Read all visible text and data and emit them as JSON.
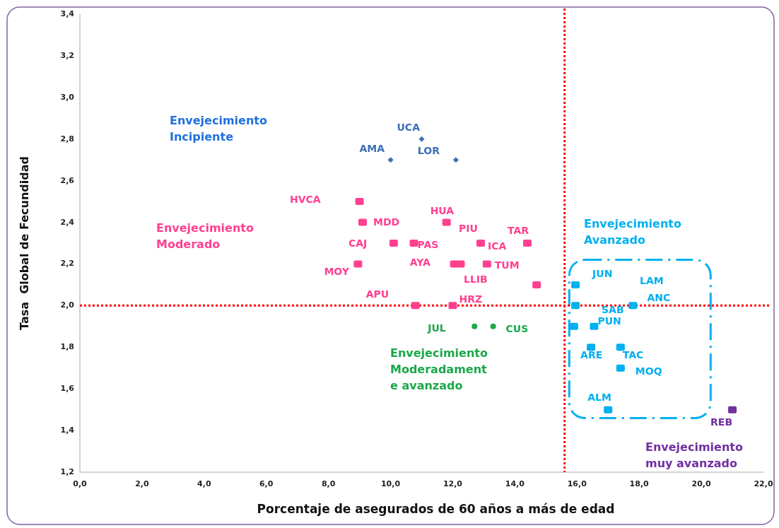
{
  "chart_data": {
    "type": "scatter",
    "xlabel": "Porcentaje de asegurados de 60 años a más de edad",
    "ylabel": "Tasa  Global de Fecundidad",
    "xlim": [
      0,
      22
    ],
    "ylim": [
      1.2,
      3.4
    ],
    "xticks": [
      {
        "value": 0,
        "label": "0,0"
      },
      {
        "value": 2,
        "label": "2,0"
      },
      {
        "value": 4,
        "label": "4,0"
      },
      {
        "value": 6,
        "label": "6,0"
      },
      {
        "value": 8,
        "label": "8,0"
      },
      {
        "value": 10,
        "label": "10,0"
      },
      {
        "value": 12,
        "label": "12,0"
      },
      {
        "value": 14,
        "label": "14,0"
      },
      {
        "value": 16,
        "label": "16,0"
      },
      {
        "value": 18,
        "label": "18,0"
      },
      {
        "value": 20,
        "label": "20,0"
      },
      {
        "value": 22,
        "label": "22,0"
      }
    ],
    "yticks": [
      {
        "value": 1.2,
        "label": "1,2"
      },
      {
        "value": 1.4,
        "label": "1,4"
      },
      {
        "value": 1.6,
        "label": "1,6"
      },
      {
        "value": 1.8,
        "label": "1,8"
      },
      {
        "value": 2.0,
        "label": "2,0"
      },
      {
        "value": 2.2,
        "label": "2,2"
      },
      {
        "value": 2.4,
        "label": "2,4"
      },
      {
        "value": 2.6,
        "label": "2,6"
      },
      {
        "value": 2.8,
        "label": "2,8"
      },
      {
        "value": 3.0,
        "label": "3,0"
      },
      {
        "value": 3.2,
        "label": "3,2"
      },
      {
        "value": 3.4,
        "label": "3,4"
      }
    ],
    "grid": false,
    "series": [
      {
        "color": "#3d6fb6",
        "marker": "diamond",
        "x": [
          10.0,
          11.0,
          12.1
        ],
        "values": [
          2.7,
          2.8,
          2.7
        ]
      },
      {
        "color": "#ff4090",
        "marker": "square",
        "x": [
          9.0,
          9.1,
          11.8,
          10.1,
          10.75,
          12.9,
          14.4,
          8.95,
          12.05,
          12.25,
          13.1,
          14.7,
          10.8,
          12.0
        ],
        "values": [
          2.5,
          2.4,
          2.4,
          2.3,
          2.3,
          2.3,
          2.3,
          2.2,
          2.2,
          2.2,
          2.2,
          2.1,
          2.0,
          2.0
        ]
      },
      {
        "color": "#1aa84a",
        "marker": "circle",
        "x": [
          12.7,
          13.3
        ],
        "values": [
          1.9,
          1.9
        ]
      },
      {
        "color": "#00b0f0",
        "marker": "square",
        "x": [
          15.95,
          15.95,
          17.8,
          15.9,
          16.55,
          16.45,
          17.4,
          17.4,
          17.0
        ],
        "values": [
          2.1,
          2.0,
          2.0,
          1.9,
          1.9,
          1.8,
          1.8,
          1.7,
          1.5
        ]
      },
      {
        "color": "#7030a0",
        "marker": "square",
        "x": [
          21.0
        ],
        "values": [
          1.5
        ]
      }
    ],
    "ref_lines": [
      {
        "axis": "x",
        "value": 15.6,
        "color": "#ff0000",
        "line_style": "dotted"
      },
      {
        "axis": "y",
        "value": 2.0,
        "color": "#ff0000",
        "line_style": "dotted"
      }
    ],
    "annotations": [
      "Envejecimiento\nIncipiente",
      "Envejecimiento\nModerado",
      "Envejecimiento\nAvanzado",
      "Envejecimiento\nModeradament\ne avanzado",
      "Envejecimiento\nmuy avanzado",
      "HVCA",
      "LLIB",
      "LAM",
      "SAB",
      {
        "text": "UCA",
        "x": 11.0,
        "y": 2.8
      },
      {
        "text": "AMA",
        "x": 10.0,
        "y": 2.7
      },
      {
        "text": "LOR",
        "x": 12.1,
        "y": 2.7
      },
      {
        "text": "MDD",
        "x": 9.1,
        "y": 2.4
      },
      {
        "text": "HUA",
        "x": 11.8,
        "y": 2.4
      },
      {
        "text": "PIU",
        "x": 12.9,
        "y": 2.3
      },
      {
        "text": "TAR",
        "x": 14.4,
        "y": 2.3
      },
      {
        "text": "CAJ",
        "x": 10.1,
        "y": 2.3
      },
      {
        "text": "PAS",
        "x": 10.75,
        "y": 2.3
      },
      {
        "text": "ICA",
        "x": 12.9,
        "y": 2.3
      },
      {
        "text": "MOY",
        "x": 8.95,
        "y": 2.2
      },
      {
        "text": "AYA",
        "x": 12.05,
        "y": 2.2
      },
      {
        "text": "TUM",
        "x": 13.1,
        "y": 2.2
      },
      {
        "text": "APU",
        "x": 10.8,
        "y": 2.0
      },
      {
        "text": "HRZ",
        "x": 12.0,
        "y": 2.0
      },
      {
        "text": "JUL",
        "x": 12.7,
        "y": 1.9
      },
      {
        "text": "CUS",
        "x": 13.3,
        "y": 1.9
      },
      {
        "text": "JUN",
        "x": 15.95,
        "y": 2.1
      },
      {
        "text": "ANC",
        "x": 17.8,
        "y": 2.0
      },
      {
        "text": "PUN",
        "x": 16.55,
        "y": 1.9
      },
      {
        "text": "ARE",
        "x": 16.45,
        "y": 1.8
      },
      {
        "text": "TAC",
        "x": 17.4,
        "y": 1.8
      },
      {
        "text": "MOQ",
        "x": 17.4,
        "y": 1.7
      },
      {
        "text": "ALM",
        "x": 17.0,
        "y": 1.5
      },
      {
        "text": "REB",
        "x": 21.0,
        "y": 1.5
      }
    ]
  }
}
